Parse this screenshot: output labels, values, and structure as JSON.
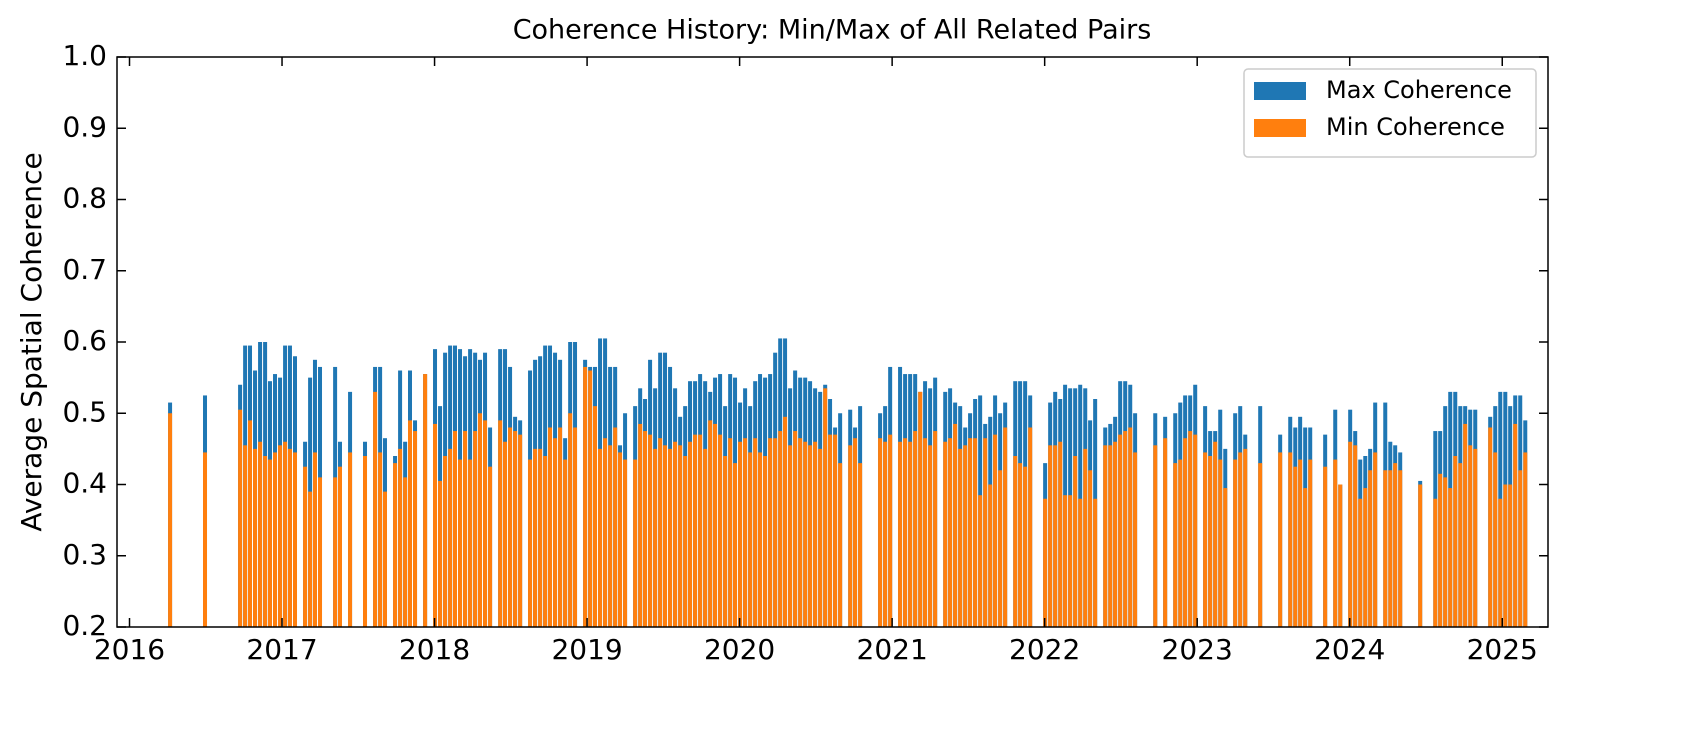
{
  "chart_data": {
    "type": "bar",
    "title": "Coherence History: Min/Max of All Related Pairs",
    "y_label": "Average Spatial Coherence",
    "x": [
      2016.266,
      2016.495,
      2016.725,
      2016.758,
      2016.79,
      2016.823,
      2016.856,
      2016.889,
      2016.921,
      2016.954,
      2016.987,
      2017.02,
      2017.052,
      2017.085,
      2017.151,
      2017.184,
      2017.216,
      2017.249,
      2017.348,
      2017.38,
      2017.446,
      2017.544,
      2017.61,
      2017.643,
      2017.675,
      2017.741,
      2017.774,
      2017.807,
      2017.839,
      2017.872,
      2017.938,
      2018.003,
      2018.036,
      2018.069,
      2018.102,
      2018.134,
      2018.167,
      2018.2,
      2018.233,
      2018.266,
      2018.298,
      2018.331,
      2018.364,
      2018.43,
      2018.462,
      2018.495,
      2018.528,
      2018.561,
      2018.626,
      2018.659,
      2018.692,
      2018.725,
      2018.757,
      2018.79,
      2018.823,
      2018.856,
      2018.889,
      2018.921,
      2018.987,
      2019.02,
      2019.052,
      2019.085,
      2019.118,
      2019.151,
      2019.184,
      2019.216,
      2019.249,
      2019.315,
      2019.348,
      2019.38,
      2019.413,
      2019.446,
      2019.479,
      2019.511,
      2019.544,
      2019.577,
      2019.61,
      2019.643,
      2019.675,
      2019.708,
      2019.741,
      2019.774,
      2019.807,
      2019.839,
      2019.872,
      2019.905,
      2019.938,
      2019.97,
      2020.003,
      2020.036,
      2020.069,
      2020.102,
      2020.134,
      2020.167,
      2020.2,
      2020.233,
      2020.266,
      2020.298,
      2020.331,
      2020.364,
      2020.397,
      2020.43,
      2020.462,
      2020.495,
      2020.528,
      2020.561,
      2020.593,
      2020.626,
      2020.659,
      2020.725,
      2020.757,
      2020.79,
      2020.921,
      2020.954,
      2020.987,
      2021.052,
      2021.085,
      2021.118,
      2021.151,
      2021.184,
      2021.216,
      2021.249,
      2021.282,
      2021.348,
      2021.38,
      2021.413,
      2021.446,
      2021.479,
      2021.511,
      2021.544,
      2021.577,
      2021.61,
      2021.643,
      2021.675,
      2021.708,
      2021.741,
      2021.807,
      2021.839,
      2021.872,
      2021.905,
      2022.003,
      2022.036,
      2022.069,
      2022.102,
      2022.134,
      2022.167,
      2022.2,
      2022.233,
      2022.266,
      2022.298,
      2022.331,
      2022.397,
      2022.43,
      2022.462,
      2022.495,
      2022.528,
      2022.561,
      2022.593,
      2022.725,
      2022.79,
      2022.856,
      2022.889,
      2022.921,
      2022.954,
      2022.987,
      2023.052,
      2023.085,
      2023.118,
      2023.151,
      2023.184,
      2023.249,
      2023.282,
      2023.315,
      2023.413,
      2023.544,
      2023.61,
      2023.643,
      2023.675,
      2023.708,
      2023.741,
      2023.839,
      2023.905,
      2023.938,
      2024.003,
      2024.036,
      2024.069,
      2024.102,
      2024.134,
      2024.167,
      2024.233,
      2024.266,
      2024.298,
      2024.331,
      2024.462,
      2024.561,
      2024.593,
      2024.626,
      2024.659,
      2024.692,
      2024.725,
      2024.757,
      2024.79,
      2024.823,
      2024.921,
      2024.954,
      2024.987,
      2025.02,
      2025.052,
      2025.085,
      2025.118,
      2025.151
    ],
    "series": [
      {
        "name": "Max Coherence",
        "color": "#1f77b4",
        "values": [
          0.515,
          0.525,
          0.54,
          0.595,
          0.595,
          0.56,
          0.6,
          0.6,
          0.545,
          0.555,
          0.55,
          0.595,
          0.595,
          0.58,
          0.46,
          0.55,
          0.575,
          0.565,
          0.565,
          0.46,
          0.53,
          0.46,
          0.565,
          0.565,
          0.465,
          0.44,
          0.56,
          0.46,
          0.56,
          0.49,
          0.555,
          0.59,
          0.51,
          0.585,
          0.595,
          0.595,
          0.59,
          0.58,
          0.59,
          0.585,
          0.575,
          0.585,
          0.48,
          0.59,
          0.59,
          0.565,
          0.495,
          0.49,
          0.56,
          0.575,
          0.58,
          0.595,
          0.595,
          0.585,
          0.575,
          0.465,
          0.6,
          0.6,
          0.575,
          0.565,
          0.565,
          0.605,
          0.605,
          0.565,
          0.565,
          0.455,
          0.5,
          0.51,
          0.535,
          0.52,
          0.575,
          0.535,
          0.585,
          0.585,
          0.565,
          0.535,
          0.495,
          0.51,
          0.545,
          0.545,
          0.555,
          0.545,
          0.53,
          0.55,
          0.555,
          0.51,
          0.555,
          0.55,
          0.515,
          0.535,
          0.51,
          0.545,
          0.555,
          0.55,
          0.555,
          0.585,
          0.605,
          0.605,
          0.535,
          0.56,
          0.55,
          0.55,
          0.545,
          0.535,
          0.53,
          0.54,
          0.52,
          0.48,
          0.5,
          0.505,
          0.48,
          0.51,
          0.5,
          0.51,
          0.565,
          0.565,
          0.555,
          0.555,
          0.555,
          0.53,
          0.545,
          0.535,
          0.55,
          0.53,
          0.535,
          0.515,
          0.51,
          0.48,
          0.5,
          0.52,
          0.525,
          0.485,
          0.495,
          0.525,
          0.5,
          0.515,
          0.545,
          0.545,
          0.545,
          0.525,
          0.43,
          0.515,
          0.53,
          0.52,
          0.54,
          0.535,
          0.535,
          0.54,
          0.535,
          0.49,
          0.52,
          0.48,
          0.485,
          0.495,
          0.545,
          0.545,
          0.54,
          0.5,
          0.5,
          0.495,
          0.5,
          0.515,
          0.525,
          0.525,
          0.54,
          0.51,
          0.475,
          0.475,
          0.505,
          0.45,
          0.5,
          0.51,
          0.47,
          0.51,
          0.47,
          0.495,
          0.48,
          0.495,
          0.48,
          0.48,
          0.47,
          0.505,
          0.4,
          0.505,
          0.475,
          0.435,
          0.44,
          0.45,
          0.515,
          0.515,
          0.46,
          0.455,
          0.445,
          0.405,
          0.475,
          0.475,
          0.51,
          0.53,
          0.53,
          0.51,
          0.51,
          0.505,
          0.505,
          0.495,
          0.51,
          0.53,
          0.53,
          0.51,
          0.525,
          0.525,
          0.49
        ]
      },
      {
        "name": "Min Coherence",
        "color": "#ff7f0e",
        "values": [
          0.5,
          0.445,
          0.505,
          0.455,
          0.49,
          0.45,
          0.46,
          0.44,
          0.435,
          0.445,
          0.455,
          0.46,
          0.45,
          0.445,
          0.425,
          0.39,
          0.445,
          0.41,
          0.41,
          0.425,
          0.445,
          0.44,
          0.53,
          0.445,
          0.39,
          0.43,
          0.45,
          0.41,
          0.49,
          0.475,
          0.555,
          0.485,
          0.405,
          0.44,
          0.45,
          0.475,
          0.435,
          0.475,
          0.435,
          0.475,
          0.5,
          0.49,
          0.425,
          0.49,
          0.46,
          0.48,
          0.475,
          0.47,
          0.435,
          0.45,
          0.45,
          0.44,
          0.48,
          0.465,
          0.48,
          0.435,
          0.5,
          0.48,
          0.565,
          0.56,
          0.51,
          0.45,
          0.465,
          0.455,
          0.48,
          0.445,
          0.435,
          0.435,
          0.485,
          0.475,
          0.47,
          0.45,
          0.465,
          0.455,
          0.45,
          0.46,
          0.455,
          0.44,
          0.46,
          0.47,
          0.47,
          0.45,
          0.49,
          0.485,
          0.47,
          0.44,
          0.465,
          0.43,
          0.46,
          0.465,
          0.445,
          0.465,
          0.445,
          0.44,
          0.465,
          0.465,
          0.475,
          0.495,
          0.455,
          0.475,
          0.465,
          0.46,
          0.455,
          0.46,
          0.45,
          0.535,
          0.47,
          0.47,
          0.43,
          0.455,
          0.465,
          0.43,
          0.465,
          0.46,
          0.47,
          0.46,
          0.465,
          0.46,
          0.475,
          0.53,
          0.465,
          0.455,
          0.475,
          0.46,
          0.465,
          0.485,
          0.45,
          0.455,
          0.465,
          0.465,
          0.385,
          0.465,
          0.4,
          0.47,
          0.42,
          0.48,
          0.44,
          0.43,
          0.425,
          0.48,
          0.38,
          0.455,
          0.455,
          0.46,
          0.385,
          0.385,
          0.44,
          0.38,
          0.45,
          0.42,
          0.38,
          0.455,
          0.455,
          0.46,
          0.47,
          0.475,
          0.48,
          0.445,
          0.455,
          0.465,
          0.43,
          0.435,
          0.465,
          0.475,
          0.47,
          0.445,
          0.44,
          0.46,
          0.435,
          0.395,
          0.435,
          0.445,
          0.45,
          0.43,
          0.445,
          0.445,
          0.425,
          0.435,
          0.395,
          0.435,
          0.425,
          0.435,
          0.4,
          0.46,
          0.455,
          0.38,
          0.395,
          0.42,
          0.445,
          0.42,
          0.42,
          0.43,
          0.42,
          0.4,
          0.38,
          0.415,
          0.41,
          0.395,
          0.44,
          0.43,
          0.485,
          0.455,
          0.45,
          0.48,
          0.445,
          0.38,
          0.4,
          0.4,
          0.485,
          0.42,
          0.445
        ]
      }
    ],
    "xlim": [
      2015.918,
      2025.3
    ],
    "xticks": [
      2016,
      2017,
      2018,
      2019,
      2020,
      2021,
      2022,
      2023,
      2024,
      2025
    ],
    "ylim": [
      0.2,
      1.0
    ],
    "yticks": [
      0.2,
      0.3,
      0.4,
      0.5,
      0.6,
      0.7,
      0.8,
      0.9,
      {
        "value": 1.0,
        "label": "1.0"
      }
    ],
    "legend": "upper right",
    "grid": false
  }
}
